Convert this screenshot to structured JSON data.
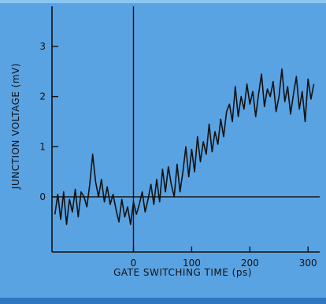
{
  "chart_data": {
    "type": "line",
    "title": "",
    "xlabel": "GATE SWITCHING TIME (ps)",
    "ylabel": "JUNCTION VOLTAGE (mV)",
    "xlim": [
      -140,
      320
    ],
    "ylim": [
      -1.1,
      3.8
    ],
    "x_ticks": [
      0,
      100,
      200,
      300
    ],
    "x_tick_labels": [
      "0",
      "100",
      "200",
      "300"
    ],
    "y_ticks": [
      0,
      1,
      2,
      3
    ],
    "y_tick_labels": [
      "0",
      "1",
      "2",
      "3"
    ],
    "grid": false,
    "legend": "none",
    "reference_lines": {
      "x_zero": true,
      "y_zero": true
    },
    "series": [
      {
        "name": "",
        "x": [
          -135,
          -130,
          -125,
          -120,
          -115,
          -110,
          -105,
          -100,
          -95,
          -90,
          -85,
          -80,
          -75,
          -70,
          -65,
          -60,
          -55,
          -50,
          -45,
          -40,
          -35,
          -30,
          -25,
          -20,
          -15,
          -10,
          -5,
          0,
          5,
          10,
          15,
          20,
          25,
          30,
          35,
          40,
          45,
          50,
          55,
          60,
          65,
          70,
          75,
          80,
          85,
          90,
          95,
          100,
          105,
          110,
          115,
          120,
          125,
          130,
          135,
          140,
          145,
          150,
          155,
          160,
          165,
          170,
          175,
          180,
          185,
          190,
          195,
          200,
          205,
          210,
          215,
          220,
          225,
          230,
          235,
          240,
          245,
          250,
          255,
          260,
          265,
          270,
          275,
          280,
          285,
          290,
          295,
          300,
          305,
          310
        ],
        "values": [
          -0.35,
          0.05,
          -0.45,
          0.1,
          -0.55,
          -0.05,
          -0.3,
          0.15,
          -0.4,
          0.1,
          0.0,
          -0.2,
          0.25,
          0.85,
          0.3,
          0.0,
          0.35,
          -0.1,
          0.2,
          -0.15,
          0.05,
          -0.25,
          -0.5,
          -0.05,
          -0.4,
          -0.2,
          -0.55,
          -0.1,
          -0.35,
          -0.15,
          0.1,
          -0.3,
          -0.05,
          0.25,
          -0.15,
          0.35,
          -0.1,
          0.55,
          0.1,
          0.6,
          0.25,
          0.0,
          0.65,
          0.1,
          0.5,
          1.0,
          0.4,
          0.95,
          0.5,
          1.2,
          0.7,
          1.1,
          0.85,
          1.45,
          0.9,
          1.3,
          1.05,
          1.55,
          1.2,
          1.7,
          1.85,
          1.5,
          2.2,
          1.6,
          2.0,
          1.75,
          2.25,
          1.85,
          2.1,
          1.6,
          2.05,
          2.45,
          1.8,
          2.15,
          2.0,
          2.3,
          1.7,
          2.0,
          2.55,
          1.9,
          2.2,
          1.65,
          2.05,
          2.4,
          1.75,
          2.1,
          1.5,
          2.35,
          1.95,
          2.25
        ]
      }
    ]
  }
}
